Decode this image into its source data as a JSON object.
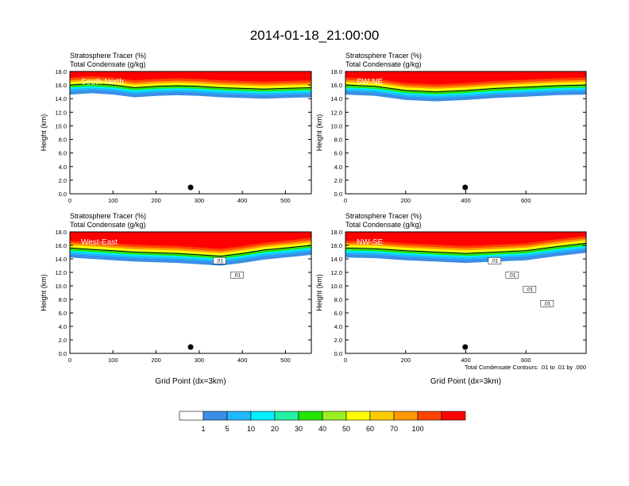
{
  "figure_title": "2014-01-18_21:00:00",
  "footnote": "Total Condensate Contours: .01 to .01 by .000",
  "colorbar": {
    "labels": [
      "1",
      "5",
      "10",
      "20",
      "30",
      "40",
      "50",
      "60",
      "70",
      "100"
    ],
    "colors": [
      "#ffffff",
      "#3a8fe6",
      "#1fb8ff",
      "#00f0ff",
      "#22f0a0",
      "#22e600",
      "#99ee22",
      "#ffff00",
      "#ffcc00",
      "#ff9900",
      "#ff4400",
      "#ff0000"
    ]
  },
  "chart_data": [
    {
      "type": "heatmap",
      "panel_label": "South-North",
      "title_line1": "Stratosphere Tracer   (%)",
      "title_line2": "Total Condensate   (g/kg)",
      "ylabel": "Height (km)",
      "xlabel": "",
      "xlim": [
        0,
        560
      ],
      "ylim": [
        0,
        18
      ],
      "xticks": [
        "0",
        "100",
        "200",
        "300",
        "400",
        "500"
      ],
      "xtick_values": [
        0,
        100,
        200,
        300,
        400,
        500
      ],
      "yticks": [
        "0.0",
        "2.0",
        "4.0",
        "6.0",
        "8.0",
        "10.0",
        "12.0",
        "14.0",
        "16.0",
        "18.0"
      ],
      "marker_x": 280,
      "tropopause_km": [
        [
          0,
          16.0
        ],
        [
          50,
          16.2
        ],
        [
          100,
          16.0
        ],
        [
          150,
          15.6
        ],
        [
          200,
          15.8
        ],
        [
          250,
          15.9
        ],
        [
          300,
          15.8
        ],
        [
          350,
          15.6
        ],
        [
          400,
          15.5
        ],
        [
          450,
          15.4
        ],
        [
          500,
          15.5
        ],
        [
          560,
          15.6
        ]
      ],
      "contour_labels": []
    },
    {
      "type": "heatmap",
      "panel_label": "SW-NE",
      "title_line1": "Stratosphere Tracer   (%)",
      "title_line2": "Total Condensate   (g/kg)",
      "ylabel": "Height (km)",
      "xlabel": "",
      "xlim": [
        0,
        800
      ],
      "ylim": [
        0,
        18
      ],
      "xticks": [
        "0",
        "200",
        "400",
        "600"
      ],
      "xtick_values": [
        0,
        200,
        400,
        600
      ],
      "yticks": [
        "0.0",
        "2.0",
        "4.0",
        "6.0",
        "8.0",
        "10.0",
        "12.0",
        "14.0",
        "16.0",
        "18.0"
      ],
      "marker_x": 398,
      "tropopause_km": [
        [
          0,
          16.0
        ],
        [
          100,
          15.8
        ],
        [
          200,
          15.2
        ],
        [
          300,
          15.0
        ],
        [
          400,
          15.2
        ],
        [
          500,
          15.5
        ],
        [
          600,
          15.7
        ],
        [
          700,
          15.9
        ],
        [
          800,
          16.0
        ]
      ],
      "contour_labels": []
    },
    {
      "type": "heatmap",
      "panel_label": "West-East",
      "title_line1": "Stratosphere Tracer   (%)",
      "title_line2": "Total Condensate   (g/kg)",
      "ylabel": "Height (km)",
      "xlabel": "Grid Point (dx=3km)",
      "xlim": [
        0,
        560
      ],
      "ylim": [
        0,
        18
      ],
      "xticks": [
        "0",
        "100",
        "200",
        "300",
        "400",
        "500"
      ],
      "xtick_values": [
        0,
        100,
        200,
        300,
        400,
        500
      ],
      "yticks": [
        "0.0",
        "2.0",
        "4.0",
        "6.0",
        "8.0",
        "10.0",
        "12.0",
        "14.0",
        "16.0",
        "18.0"
      ],
      "marker_x": 280,
      "tropopause_km": [
        [
          0,
          15.6
        ],
        [
          50,
          15.4
        ],
        [
          100,
          15.2
        ],
        [
          150,
          15.0
        ],
        [
          200,
          14.9
        ],
        [
          250,
          14.8
        ],
        [
          300,
          14.6
        ],
        [
          350,
          14.4
        ],
        [
          400,
          14.8
        ],
        [
          450,
          15.3
        ],
        [
          500,
          15.6
        ],
        [
          560,
          16.0
        ]
      ],
      "contour_labels": [
        ".01",
        ".01"
      ]
    },
    {
      "type": "heatmap",
      "panel_label": "NW-SE",
      "title_line1": "Stratosphere Tracer   (%)",
      "title_line2": "Total Condensate   (g/kg)",
      "ylabel": "Height (km)",
      "xlabel": "Grid Point (dx=3km)",
      "xlim": [
        0,
        800
      ],
      "ylim": [
        0,
        18
      ],
      "xticks": [
        "0",
        "200",
        "400",
        "600"
      ],
      "xtick_values": [
        0,
        200,
        400,
        600
      ],
      "yticks": [
        "0.0",
        "2.0",
        "4.0",
        "6.0",
        "8.0",
        "10.0",
        "12.0",
        "14.0",
        "16.0",
        "18.0"
      ],
      "marker_x": 398,
      "tropopause_km": [
        [
          0,
          15.6
        ],
        [
          100,
          15.5
        ],
        [
          200,
          15.2
        ],
        [
          300,
          15.0
        ],
        [
          400,
          14.8
        ],
        [
          500,
          15.0
        ],
        [
          600,
          15.2
        ],
        [
          700,
          15.8
        ],
        [
          800,
          16.3
        ]
      ],
      "contour_labels": [
        ".01",
        ".01",
        ".01",
        ".01"
      ]
    }
  ]
}
